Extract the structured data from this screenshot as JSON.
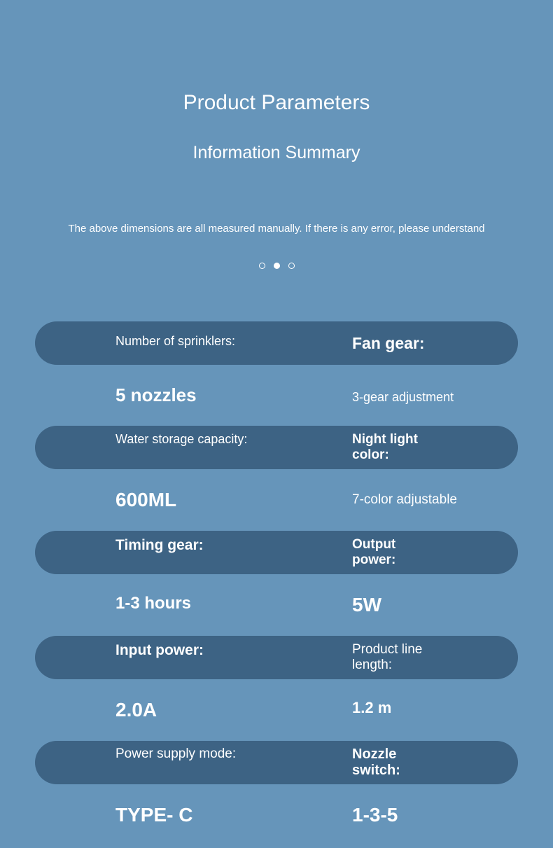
{
  "header": {
    "title": "Product Parameters",
    "subtitle": "Information Summary",
    "disclaimer": "The above dimensions are all measured manually. If there is any error, please understand"
  },
  "dots": {
    "count": 3,
    "active_index": 1
  },
  "colors": {
    "background": "#6695ba",
    "pill": "#3d6384",
    "text": "#ffffff"
  },
  "params": [
    {
      "left_label": "Number of sprinklers:",
      "right_label": "Fan gear:",
      "left_value": "5 nozzles",
      "right_value": "3-gear adjustment"
    },
    {
      "left_label": "Water storage capacity:",
      "right_label": "Night light color:",
      "left_value": "600ML",
      "right_value": "7-color adjustable"
    },
    {
      "left_label": "Timing gear:",
      "right_label": "Output power:",
      "left_value": "1-3 hours",
      "right_value": "5W"
    },
    {
      "left_label": "Input power:",
      "right_label": "Product line length:",
      "left_value": "2.0A",
      "right_value": "1.2 m"
    },
    {
      "left_label": "Power supply mode:",
      "right_label": "Nozzle switch:",
      "left_value": "TYPE- C",
      "right_value": "1-3-5"
    }
  ]
}
